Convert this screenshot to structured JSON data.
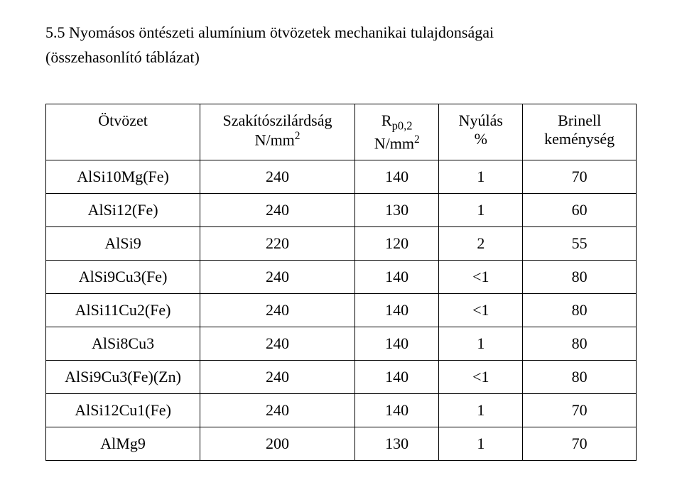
{
  "heading_line1": "5.5 Nyomásos öntészeti alumínium ötvözetek mechanikai tulajdonságai",
  "heading_line2": "(összehasonlító táblázat)",
  "table": {
    "header": {
      "alloy": {
        "line1": "Ötvözet",
        "line2": ""
      },
      "tensile": {
        "line1": "Szakítószilárdság",
        "line2_prefix": "N/mm",
        "line2_sup": "2"
      },
      "rp": {
        "line1_prefix": "R",
        "line1_sub": "p0,2",
        "line2_prefix": "N/mm",
        "line2_sup": "2"
      },
      "elong": {
        "line1": "Nyúlás",
        "line2": "%"
      },
      "brinell": {
        "line1": "Brinell",
        "line2": "keménység"
      }
    },
    "rows": [
      {
        "alloy": "AlSi10Mg(Fe)",
        "tensile": "240",
        "rp": "140",
        "elong": "1",
        "brinell": "70"
      },
      {
        "alloy": "AlSi12(Fe)",
        "tensile": "240",
        "rp": "130",
        "elong": "1",
        "brinell": "60"
      },
      {
        "alloy": "AlSi9",
        "tensile": "220",
        "rp": "120",
        "elong": "2",
        "brinell": "55"
      },
      {
        "alloy": "AlSi9Cu3(Fe)",
        "tensile": "240",
        "rp": "140",
        "elong": "<1",
        "brinell": "80"
      },
      {
        "alloy": "AlSi11Cu2(Fe)",
        "tensile": "240",
        "rp": "140",
        "elong": "<1",
        "brinell": "80"
      },
      {
        "alloy": "AlSi8Cu3",
        "tensile": "240",
        "rp": "140",
        "elong": "1",
        "brinell": "80"
      },
      {
        "alloy": "AlSi9Cu3(Fe)(Zn)",
        "tensile": "240",
        "rp": "140",
        "elong": "<1",
        "brinell": "80"
      },
      {
        "alloy": "AlSi12Cu1(Fe)",
        "tensile": "240",
        "rp": "140",
        "elong": "1",
        "brinell": "70"
      },
      {
        "alloy": "AlMg9",
        "tensile": "200",
        "rp": "130",
        "elong": "1",
        "brinell": "70"
      }
    ]
  }
}
